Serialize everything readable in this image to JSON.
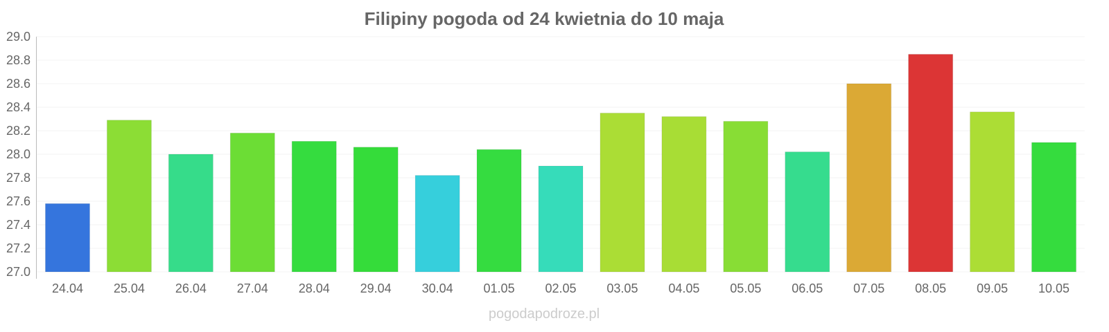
{
  "chart_data": {
    "type": "bar",
    "title": "Filipiny pogoda od 24 kwietnia do 10 maja",
    "xlabel": "",
    "ylabel": "",
    "ylim": [
      27.0,
      29.0
    ],
    "yticks": [
      "27.0",
      "27.2",
      "27.4",
      "27.6",
      "27.8",
      "28.0",
      "28.2",
      "28.4",
      "28.6",
      "28.8",
      "29.0"
    ],
    "grid": true,
    "categories": [
      "24.04",
      "25.04",
      "26.04",
      "27.04",
      "28.04",
      "29.04",
      "30.04",
      "01.05",
      "02.05",
      "03.05",
      "04.05",
      "05.05",
      "06.05",
      "07.05",
      "08.05",
      "09.05",
      "10.05"
    ],
    "values": [
      27.58,
      28.29,
      28.0,
      28.18,
      28.11,
      28.06,
      27.82,
      28.04,
      27.9,
      28.35,
      28.32,
      28.28,
      28.02,
      28.6,
      28.85,
      28.36,
      28.1
    ],
    "colors": [
      "#3575dd",
      "#8cdd35",
      "#36dc8a",
      "#6cdd35",
      "#35dc3f",
      "#35dc3a",
      "#36cfdc",
      "#35dc40",
      "#36dcba",
      "#abdd35",
      "#a8dd35",
      "#88dd35",
      "#36dc8e",
      "#dba935",
      "#dc3535",
      "#acdd35",
      "#35dc3e"
    ]
  },
  "watermark": "pogodapodroze.pl"
}
